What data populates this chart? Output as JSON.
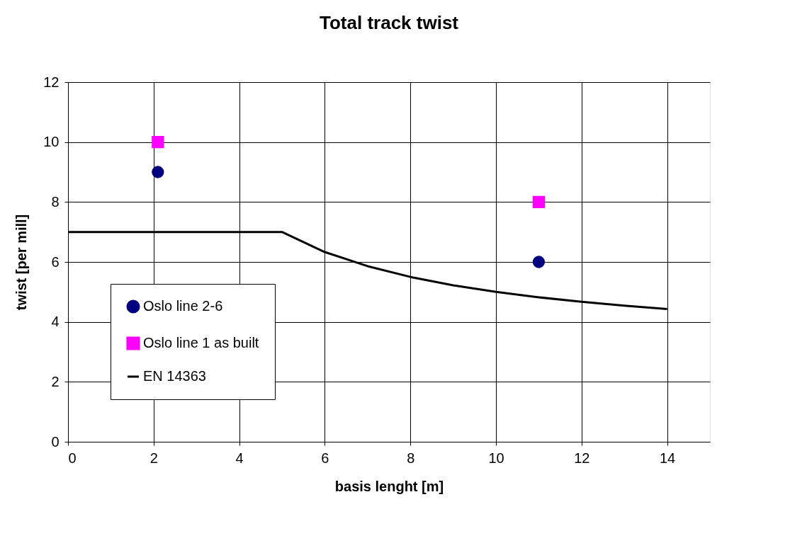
{
  "chart_data": {
    "type": "scatter",
    "title": "Total track twist",
    "xlabel": "basis lenght [m]",
    "ylabel": "twist [per mill]",
    "xlim": [
      0,
      15
    ],
    "xticks": [
      0,
      2,
      4,
      6,
      8,
      10,
      12,
      14
    ],
    "ylim": [
      0,
      12
    ],
    "yticks": [
      0,
      2,
      4,
      6,
      8,
      10,
      12
    ],
    "grid": true,
    "legend": "bottom left",
    "series": [
      {
        "name": "Oslo line 2-6",
        "marker": "circle",
        "color": "#000080",
        "x": [
          2.1,
          11
        ],
        "values": [
          9,
          6
        ]
      },
      {
        "name": "Oslo line 1 as built",
        "marker": "square",
        "color": "#ff00ff",
        "x": [
          2.1,
          11
        ],
        "values": [
          10,
          8
        ]
      },
      {
        "name": "EN 14363",
        "type": "line",
        "marker": "none",
        "line_style": "solid",
        "color": "#000000",
        "x": [
          0,
          5,
          6,
          7,
          8,
          9,
          10,
          11,
          12,
          13,
          14
        ],
        "values": [
          7,
          7,
          6.33,
          5.86,
          5.5,
          5.22,
          5.0,
          4.82,
          4.67,
          4.54,
          4.43
        ]
      }
    ]
  }
}
